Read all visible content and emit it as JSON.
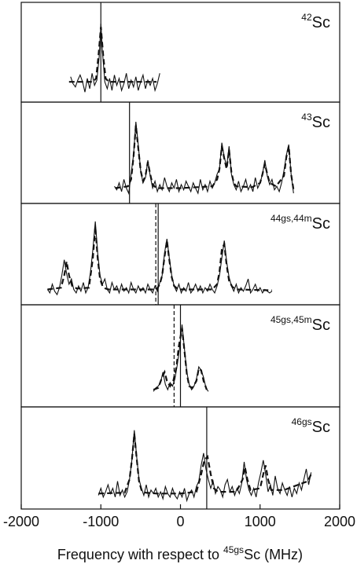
{
  "chart_data": {
    "type": "line",
    "xlabel_prefix": "Frequency with respect to ",
    "xlabel_sup": "45gs",
    "xlabel_suffix": "Sc (MHz)",
    "xlim": [
      -2000,
      2000
    ],
    "xticks": [
      -2000,
      -1000,
      0,
      1000,
      2000
    ],
    "xtick_labels": [
      "-2000",
      "-1000",
      "0",
      "1000",
      "2000"
    ],
    "grid": false,
    "panels": [
      {
        "label_sup": "42",
        "label_base": "Sc",
        "ylim": [
          0,
          1
        ],
        "data": {
          "x": [
            -1380,
            -1350,
            -1320,
            -1290,
            -1260,
            -1230,
            -1200,
            -1170,
            -1140,
            -1110,
            -1080,
            -1050,
            -1020,
            -1000,
            -980,
            -950,
            -920,
            -890,
            -860,
            -830,
            -800,
            -770,
            -740,
            -710,
            -680,
            -650,
            -620,
            -590,
            -560,
            -530,
            -500,
            -470,
            -440,
            -410,
            -380,
            -350,
            -320,
            -290,
            -260
          ],
          "y": [
            0.26,
            0.18,
            0.14,
            0.22,
            0.28,
            0.2,
            0.08,
            0.24,
            0.12,
            0.3,
            0.16,
            0.22,
            0.5,
            0.88,
            0.55,
            0.2,
            0.12,
            0.24,
            0.1,
            0.28,
            0.16,
            0.24,
            0.1,
            0.18,
            0.3,
            0.12,
            0.22,
            0.14,
            0.26,
            0.1,
            0.2,
            0.28,
            0.12,
            0.22,
            0.16,
            0.24,
            0.1,
            0.18,
            0.3
          ]
        },
        "fit": {
          "x": [
            -1400,
            -1100,
            -1060,
            -1030,
            -1000,
            -970,
            -940,
            -900,
            -300
          ],
          "y": [
            0.2,
            0.2,
            0.24,
            0.5,
            0.84,
            0.5,
            0.24,
            0.2,
            0.2
          ]
        },
        "markers_solid": [
          -1000
        ],
        "markers_dashed": []
      },
      {
        "label_sup": "43",
        "label_base": "Sc",
        "ylim": [
          0,
          1
        ],
        "data": {
          "x": [
            -830,
            -800,
            -770,
            -740,
            -710,
            -680,
            -650,
            -620,
            -590,
            -560,
            -530,
            -500,
            -470,
            -440,
            -410,
            -380,
            -350,
            -320,
            -290,
            -260,
            -230,
            -200,
            -170,
            -140,
            -110,
            -80,
            -50,
            -20,
            10,
            40,
            70,
            100,
            130,
            160,
            190,
            220,
            250,
            280,
            310,
            340,
            370,
            400,
            430,
            460,
            490,
            520,
            550,
            580,
            610,
            640,
            670,
            700,
            730,
            760,
            790,
            820,
            850,
            880,
            910,
            940,
            970,
            1000,
            1030,
            1060,
            1090,
            1120,
            1150,
            1180,
            1210,
            1240,
            1270,
            1300,
            1330,
            1360,
            1390,
            1420
          ],
          "y": [
            0.16,
            0.12,
            0.2,
            0.1,
            0.24,
            0.14,
            0.08,
            0.3,
            0.52,
            0.9,
            0.64,
            0.34,
            0.2,
            0.26,
            0.46,
            0.28,
            0.14,
            0.22,
            0.1,
            0.18,
            0.12,
            0.26,
            0.16,
            0.1,
            0.2,
            0.14,
            0.24,
            0.1,
            0.18,
            0.12,
            0.22,
            0.16,
            0.1,
            0.2,
            0.14,
            0.08,
            0.24,
            0.12,
            0.18,
            0.1,
            0.22,
            0.14,
            0.2,
            0.3,
            0.36,
            0.66,
            0.5,
            0.38,
            0.62,
            0.3,
            0.18,
            0.12,
            0.22,
            0.1,
            0.16,
            0.24,
            0.12,
            0.18,
            0.1,
            0.26,
            0.14,
            0.2,
            0.3,
            0.46,
            0.28,
            0.18,
            0.24,
            0.12,
            0.16,
            0.1,
            0.2,
            0.34,
            0.52,
            0.64,
            0.3,
            0.08
          ]
        },
        "fit": {
          "x": [
            -820,
            -660,
            -620,
            -590,
            -560,
            -530,
            -500,
            -470,
            -440,
            -410,
            -380,
            -350,
            -300,
            0,
            400,
            460,
            490,
            520,
            550,
            580,
            610,
            640,
            670,
            700,
            900,
            1000,
            1030,
            1060,
            1090,
            1120,
            1200,
            1300,
            1330,
            1360,
            1390,
            1420
          ],
          "y": [
            0.14,
            0.16,
            0.24,
            0.5,
            0.86,
            0.6,
            0.34,
            0.22,
            0.28,
            0.44,
            0.3,
            0.18,
            0.14,
            0.14,
            0.16,
            0.24,
            0.36,
            0.62,
            0.48,
            0.36,
            0.58,
            0.32,
            0.2,
            0.16,
            0.15,
            0.2,
            0.3,
            0.42,
            0.3,
            0.2,
            0.16,
            0.28,
            0.5,
            0.62,
            0.3,
            0.12
          ]
        },
        "markers_solid": [
          -640
        ],
        "markers_dashed": []
      },
      {
        "label_sup": "44gs,44m",
        "label_base": "Sc",
        "ylim": [
          0,
          1
        ],
        "data": {
          "x": [
            -1670,
            -1640,
            -1610,
            -1580,
            -1550,
            -1520,
            -1490,
            -1460,
            -1430,
            -1400,
            -1370,
            -1340,
            -1310,
            -1280,
            -1250,
            -1220,
            -1190,
            -1160,
            -1130,
            -1100,
            -1070,
            -1040,
            -1010,
            -980,
            -950,
            -920,
            -890,
            -860,
            -830,
            -800,
            -770,
            -740,
            -710,
            -680,
            -650,
            -620,
            -590,
            -560,
            -530,
            -500,
            -470,
            -440,
            -410,
            -380,
            -350,
            -320,
            -290,
            -260,
            -230,
            -200,
            -170,
            -140,
            -110,
            -80,
            -50,
            -20,
            10,
            40,
            70,
            100,
            130,
            160,
            190,
            220,
            250,
            280,
            310,
            340,
            370,
            400,
            430,
            460,
            490,
            520,
            550,
            580,
            610,
            640,
            670,
            700,
            730,
            760,
            790,
            820,
            850,
            880,
            910,
            940,
            970,
            1000,
            1030,
            1060,
            1090,
            1120,
            1150
          ],
          "y": [
            0.14,
            0.1,
            0.2,
            0.12,
            0.08,
            0.16,
            0.3,
            0.48,
            0.32,
            0.2,
            0.26,
            0.14,
            0.1,
            0.18,
            0.12,
            0.22,
            0.1,
            0.16,
            0.34,
            0.6,
            0.92,
            0.56,
            0.3,
            0.2,
            0.26,
            0.14,
            0.1,
            0.22,
            0.14,
            0.18,
            0.1,
            0.2,
            0.12,
            0.16,
            0.1,
            0.22,
            0.14,
            0.1,
            0.18,
            0.12,
            0.16,
            0.1,
            0.2,
            0.14,
            0.1,
            0.18,
            0.12,
            0.22,
            0.3,
            0.56,
            0.72,
            0.5,
            0.3,
            0.18,
            0.12,
            0.2,
            0.1,
            0.16,
            0.12,
            0.22,
            0.1,
            0.14,
            0.2,
            0.12,
            0.18,
            0.1,
            0.16,
            0.12,
            0.2,
            0.14,
            0.1,
            0.18,
            0.3,
            0.5,
            0.7,
            0.46,
            0.28,
            0.18,
            0.12,
            0.2,
            0.1,
            0.16,
            0.12,
            0.18,
            0.26,
            0.1,
            0.14,
            0.2,
            0.12,
            0.16,
            0.1,
            0.14,
            0.12,
            0.1,
            0.12
          ]
        },
        "fit": {
          "x": [
            -1670,
            -1500,
            -1460,
            -1430,
            -1400,
            -1360,
            -1300,
            -1150,
            -1100,
            -1070,
            -1040,
            -1010,
            -980,
            -940,
            -900,
            -300,
            -260,
            -230,
            -200,
            -170,
            -140,
            -110,
            -80,
            -40,
            0,
            300,
            400,
            460,
            490,
            520,
            550,
            580,
            610,
            650,
            700,
            1150
          ],
          "y": [
            0.14,
            0.16,
            0.3,
            0.46,
            0.3,
            0.18,
            0.15,
            0.16,
            0.5,
            0.86,
            0.5,
            0.26,
            0.18,
            0.15,
            0.14,
            0.14,
            0.2,
            0.3,
            0.52,
            0.7,
            0.48,
            0.28,
            0.18,
            0.15,
            0.14,
            0.14,
            0.14,
            0.2,
            0.34,
            0.6,
            0.66,
            0.42,
            0.24,
            0.17,
            0.14,
            0.13
          ]
        },
        "markers_solid": [
          -280
        ],
        "markers_dashed": [
          -310
        ]
      },
      {
        "label_sup": "45gs,45m",
        "label_base": "Sc",
        "ylim": [
          0,
          1
        ],
        "data": {
          "x": [
            -340,
            -310,
            -280,
            -250,
            -220,
            -190,
            -160,
            -130,
            -100,
            -70,
            -40,
            -10,
            20,
            50,
            80,
            110,
            140,
            170,
            200,
            230,
            260,
            290,
            320,
            350
          ],
          "y": [
            0.14,
            0.18,
            0.2,
            0.24,
            0.36,
            0.22,
            0.16,
            0.24,
            0.2,
            0.28,
            0.44,
            0.64,
            0.9,
            0.62,
            0.36,
            0.22,
            0.16,
            0.2,
            0.28,
            0.42,
            0.38,
            0.3,
            0.18,
            0.14
          ]
        },
        "fit": {
          "x": [
            -340,
            -280,
            -230,
            -200,
            -170,
            -130,
            -90,
            -50,
            -20,
            20,
            50,
            80,
            110,
            150,
            200,
            230,
            260,
            290,
            330
          ],
          "y": [
            0.16,
            0.18,
            0.3,
            0.36,
            0.26,
            0.2,
            0.26,
            0.42,
            0.66,
            0.86,
            0.6,
            0.34,
            0.2,
            0.18,
            0.26,
            0.4,
            0.38,
            0.26,
            0.16
          ]
        },
        "markers_solid": [
          0
        ],
        "markers_dashed": [
          -80
        ]
      },
      {
        "label_sup": "46gs",
        "label_base": "Sc",
        "ylim": [
          0,
          1
        ],
        "data": {
          "x": [
            -1030,
            -1000,
            -970,
            -940,
            -910,
            -880,
            -850,
            -820,
            -790,
            -760,
            -730,
            -700,
            -670,
            -640,
            -610,
            -580,
            -550,
            -520,
            -490,
            -460,
            -430,
            -400,
            -370,
            -340,
            -310,
            -280,
            -250,
            -220,
            -190,
            -160,
            -130,
            -100,
            -70,
            -40,
            -10,
            20,
            50,
            80,
            110,
            140,
            170,
            200,
            230,
            260,
            290,
            320,
            350,
            380,
            410,
            440,
            470,
            500,
            530,
            560,
            590,
            620,
            650,
            680,
            710,
            740,
            770,
            800,
            830,
            860,
            890,
            920,
            950,
            980,
            1010,
            1040,
            1070,
            1100,
            1130,
            1160,
            1190,
            1220,
            1250,
            1280,
            1310,
            1340,
            1370,
            1400,
            1430,
            1460,
            1490,
            1520,
            1550,
            1580,
            1610,
            1640
          ],
          "y": [
            0.12,
            0.2,
            0.1,
            0.16,
            0.24,
            0.14,
            0.2,
            0.1,
            0.28,
            0.12,
            0.18,
            0.1,
            0.16,
            0.3,
            0.52,
            0.86,
            0.56,
            0.3,
            0.2,
            0.12,
            0.24,
            0.1,
            0.18,
            0.14,
            0.2,
            0.1,
            0.16,
            0.08,
            0.22,
            0.14,
            0.1,
            0.2,
            0.12,
            0.08,
            0.16,
            0.1,
            0.2,
            0.06,
            0.14,
            0.18,
            0.1,
            0.22,
            0.28,
            0.46,
            0.6,
            0.42,
            0.3,
            0.2,
            0.28,
            0.14,
            0.22,
            0.18,
            0.1,
            0.24,
            0.3,
            0.16,
            0.22,
            0.12,
            0.2,
            0.14,
            0.26,
            0.5,
            0.3,
            0.18,
            0.12,
            0.2,
            0.1,
            0.26,
            0.38,
            0.52,
            0.36,
            0.16,
            0.24,
            0.12,
            0.34,
            0.2,
            0.14,
            0.26,
            0.18,
            0.12,
            0.22,
            0.1,
            0.2,
            0.14,
            0.26,
            0.18,
            0.3,
            0.42,
            0.24,
            0.38
          ]
        },
        "fit": {
          "x": [
            -1030,
            -700,
            -640,
            -610,
            -580,
            -550,
            -520,
            -490,
            -440,
            -300,
            0,
            200,
            260,
            300,
            340,
            380,
            420,
            470,
            700,
            780,
            810,
            840,
            880,
            1000,
            1040,
            1070,
            1100,
            1140,
            1300,
            1600,
            1640
          ],
          "y": [
            0.14,
            0.15,
            0.3,
            0.52,
            0.82,
            0.54,
            0.28,
            0.18,
            0.15,
            0.14,
            0.14,
            0.16,
            0.36,
            0.52,
            0.56,
            0.36,
            0.2,
            0.16,
            0.16,
            0.3,
            0.44,
            0.3,
            0.18,
            0.2,
            0.36,
            0.46,
            0.3,
            0.18,
            0.18,
            0.28,
            0.36
          ]
        },
        "markers_solid": [
          330
        ],
        "markers_dashed": []
      }
    ]
  }
}
